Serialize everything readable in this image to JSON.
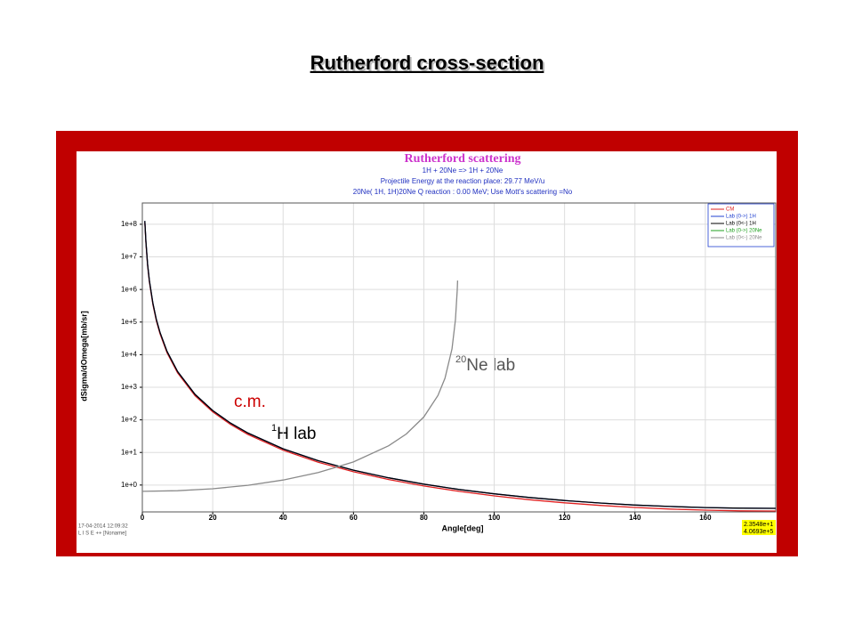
{
  "slide_title": "Rutherford cross-section",
  "chart_data": {
    "type": "line",
    "title": "Rutherford scattering",
    "subtitles": [
      "1H + 20Ne =>  1H + 20Ne",
      "Projectile Energy at the reaction place: 29.77 MeV/u",
      "20Ne( 1H, 1H)20Ne      Q reaction :  0.00 MeV;   Use Mott's scattering =No"
    ],
    "x_label": "Angle[deg]",
    "y_label": "dSigma/dOmega[mb/sr]",
    "xlim": [
      0,
      180
    ],
    "xticks": [
      0,
      20,
      40,
      60,
      80,
      100,
      120,
      140,
      160
    ],
    "ylim": [
      0.15,
      450000000
    ],
    "yticks": [
      {
        "value": 1,
        "label": "1e+0"
      },
      {
        "value": 10,
        "label": "1e+1"
      },
      {
        "value": 100,
        "label": "1e+2"
      },
      {
        "value": 1000,
        "label": "1e+3"
      },
      {
        "value": 10000,
        "label": "1e+4"
      },
      {
        "value": 100000,
        "label": "1e+5"
      },
      {
        "value": 1000000,
        "label": "1e+6"
      },
      {
        "value": 10000000,
        "label": "1e+7"
      },
      {
        "value": 100000000,
        "label": "1e+8"
      }
    ],
    "y_log": true,
    "grid": true,
    "legend": "top-right",
    "series": [
      {
        "name": "CM",
        "color": "#e02020",
        "x": [
          0.7,
          1,
          1.5,
          2,
          3,
          4,
          5,
          7,
          10,
          15,
          20,
          25,
          30,
          40,
          50,
          60,
          70,
          80,
          90,
          100,
          110,
          120,
          130,
          140,
          150,
          160,
          170,
          180
        ],
        "values": [
          114900000,
          27590000,
          5450000,
          1725000,
          340800,
          107850,
          44200,
          11520,
          2773,
          551,
          176,
          72.9,
          35.7,
          11.69,
          5.02,
          2.56,
          1.478,
          0.937,
          0.64,
          0.465,
          0.355,
          0.284,
          0.237,
          0.205,
          0.184,
          0.17,
          0.162,
          0.16
        ]
      },
      {
        "name": "Lab (0->)  1H",
        "color": "#2040d0",
        "x": [
          0.7,
          1,
          1.5,
          2,
          3,
          4,
          5,
          7,
          10,
          15,
          20,
          25,
          30,
          40,
          50,
          60,
          70,
          80,
          90,
          100,
          110,
          120,
          130,
          140,
          150,
          160,
          170,
          180
        ],
        "values": [
          126000000,
          30300000,
          5990000,
          1895000,
          374500,
          118500,
          48600,
          12660,
          3048,
          606,
          194,
          80.4,
          39.4,
          12.95,
          5.59,
          2.87,
          1.67,
          1.066,
          0.734,
          0.539,
          0.415,
          0.335,
          0.281,
          0.244,
          0.22,
          0.204,
          0.195,
          0.193
        ]
      },
      {
        "name": "Lab (0<-)  1H",
        "color": "#000000",
        "x": [
          0.7,
          1,
          1.5,
          2,
          3,
          4,
          5,
          7,
          10,
          15,
          20,
          25,
          30,
          40,
          50,
          60,
          70,
          80,
          90,
          100,
          110,
          120,
          130,
          140,
          150,
          160,
          170,
          180
        ],
        "values": [
          126000000,
          30300000,
          5990000,
          1895000,
          374500,
          118500,
          48600,
          12660,
          3048,
          606,
          194,
          80.4,
          39.4,
          12.95,
          5.59,
          2.87,
          1.67,
          1.066,
          0.734,
          0.539,
          0.415,
          0.335,
          0.281,
          0.244,
          0.22,
          0.204,
          0.195,
          0.193
        ]
      },
      {
        "name": "Lab (0->) 20Ne",
        "color": "#20a020",
        "x": [],
        "values": []
      },
      {
        "name": "Lab (0<-) 20Ne",
        "color": "#8a8a8a",
        "x": [
          0,
          10,
          20,
          30,
          40,
          50,
          60,
          70,
          75,
          80,
          84,
          86,
          88,
          89,
          89.5,
          89.6
        ],
        "values": [
          0.64,
          0.67,
          0.771,
          0.985,
          1.424,
          2.41,
          5.12,
          16,
          36.9,
          122,
          560,
          1886,
          15060,
          120400,
          963000,
          1880000
        ]
      }
    ],
    "annotations": [
      {
        "text": "c.m."
      },
      {
        "sup": "1",
        "text": "H lab"
      },
      {
        "sup": "20",
        "text": "Ne lab"
      }
    ],
    "footer": [
      "17-04-2014  12:09:32",
      "L I S E ++   [Noname]"
    ],
    "cursor_readout": [
      "2.3548e+1",
      "4.0693e+5"
    ]
  }
}
